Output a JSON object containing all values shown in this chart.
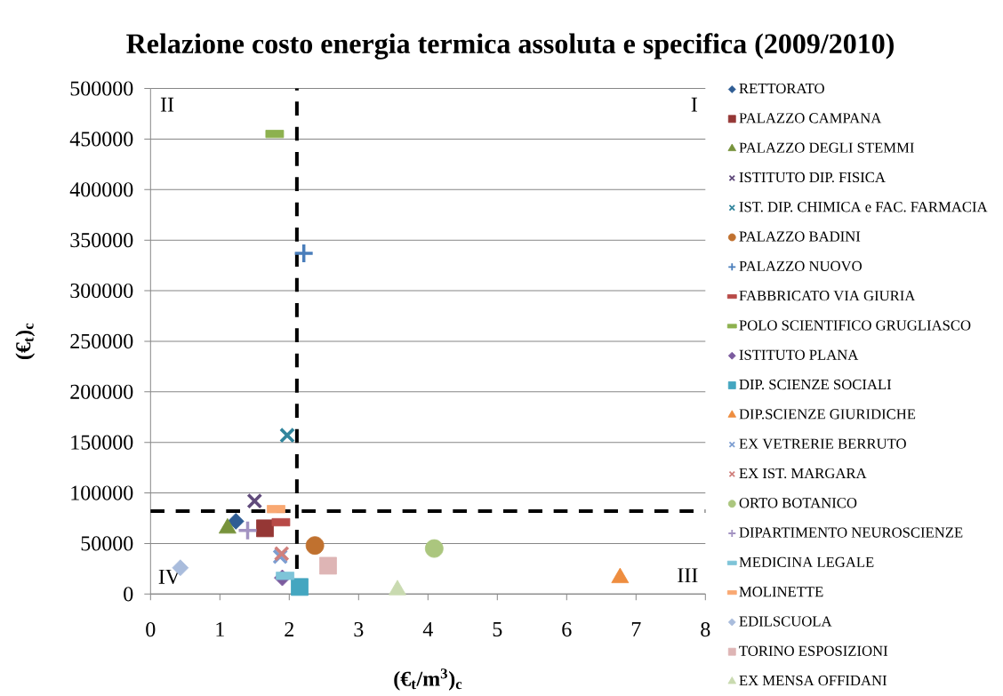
{
  "chart_data": {
    "type": "scatter",
    "title": "Relazione costo energia termica assoluta e specifica (2009/2010)",
    "xlabel": "(€$_{t}$/m$^{3}$)$_{c}$",
    "ylabel": "(€$_{t}$)$_{c}$",
    "xlim": [
      0,
      8
    ],
    "ylim": [
      0,
      500000
    ],
    "xticks": [
      0,
      1,
      2,
      3,
      4,
      5,
      6,
      7,
      8
    ],
    "yticks": [
      0,
      50000,
      100000,
      150000,
      200000,
      250000,
      300000,
      350000,
      400000,
      450000,
      500000
    ],
    "grid": "y",
    "legend": "right",
    "ref_lines": [
      {
        "axis": "x",
        "value": 2.11,
        "color": "#000000",
        "line_style": "dashed"
      },
      {
        "axis": "y",
        "value": 82000,
        "color": "#000000",
        "line_style": "dashed"
      }
    ],
    "annotations": [
      "II",
      "I",
      "IV",
      "III"
    ],
    "series": [
      {
        "name": "RETTORATO",
        "color": "#2F5D94",
        "marker": "diamond",
        "x": [
          1.23
        ],
        "values": [
          72000
        ]
      },
      {
        "name": "PALAZZO CAMPANA",
        "color": "#953735",
        "marker": "square",
        "x": [
          1.65
        ],
        "values": [
          65000
        ]
      },
      {
        "name": "PALAZZO DEGLI STEMMI",
        "color": "#77933C",
        "marker": "triangle",
        "x": [
          1.11
        ],
        "values": [
          65000
        ]
      },
      {
        "name": "ISTITUTO DIP. FISICA",
        "color": "#604A7B",
        "marker": "cross",
        "x": [
          1.5
        ],
        "values": [
          92000
        ]
      },
      {
        "name": "IST. DIP. CHIMICA e FAC. FARMACIA",
        "color": "#31859C",
        "marker": "cross",
        "x": [
          1.97
        ],
        "values": [
          157000
        ]
      },
      {
        "name": "PALAZZO BADINI",
        "color": "#C0712F",
        "marker": "circle",
        "x": [
          2.37
        ],
        "values": [
          48000
        ]
      },
      {
        "name": "PALAZZO NUOVO",
        "color": "#4A7EBB",
        "marker": "plus",
        "x": [
          2.21
        ],
        "values": [
          337000
        ]
      },
      {
        "name": "FABBRICATO VIA GIURIA",
        "color": "#B84A47",
        "x": [
          1.88
        ],
        "values": [
          71000
        ]
      },
      {
        "name": "POLO SCIENTIFICO GRUGLIASCO",
        "color": "#8DB14F",
        "x": [
          1.79
        ],
        "values": [
          455000
        ]
      },
      {
        "name": "ISTITUTO PLANA",
        "color": "#7B5B9E",
        "marker": "diamond",
        "x": [
          1.9
        ],
        "values": [
          16000
        ]
      },
      {
        "name": "DIP. SCIENZE SOCIALI",
        "color": "#44A6C0",
        "marker": "square",
        "x": [
          2.15
        ],
        "values": [
          7000
        ]
      },
      {
        "name": "DIP.SCIENZE GIURIDICHE",
        "color": "#EE8D3F",
        "marker": "triangle",
        "x": [
          6.77
        ],
        "values": [
          16000
        ]
      },
      {
        "name": "EX VETRERIE BERRUTO",
        "color": "#7D9ED1",
        "marker": "cross",
        "x": [
          1.87
        ],
        "values": [
          37000
        ]
      },
      {
        "name": "EX IST. MARGARA",
        "color": "#D0807D",
        "marker": "cross",
        "x": [
          1.89
        ],
        "values": [
          40000
        ]
      },
      {
        "name": "ORTO BOTANICO",
        "color": "#ABC67E",
        "marker": "circle",
        "x": [
          4.09
        ],
        "values": [
          45000
        ]
      },
      {
        "name": "DIPARTIMENTO NEUROSCIENZE",
        "color": "#A393C2",
        "marker": "plus",
        "x": [
          1.4
        ],
        "values": [
          63000
        ]
      },
      {
        "name": "MEDICINA LEGALE",
        "color": "#7EC4D8",
        "x": [
          1.94
        ],
        "values": [
          18000
        ]
      },
      {
        "name": "MOLINETTE",
        "color": "#F9A872",
        "x": [
          1.81
        ],
        "values": [
          84000
        ]
      },
      {
        "name": "EDILSCUOLA",
        "color": "#A9BCDC",
        "marker": "diamond",
        "x": [
          0.43
        ],
        "values": [
          26000
        ]
      },
      {
        "name": "TORINO ESPOSIZIONI",
        "color": "#DEB5B5",
        "marker": "square",
        "x": [
          2.56
        ],
        "values": [
          28000
        ]
      },
      {
        "name": "EX MENSA OFFIDANI",
        "color": "#C9DAB0",
        "marker": "triangle",
        "x": [
          3.56
        ],
        "values": [
          4000
        ]
      }
    ]
  }
}
